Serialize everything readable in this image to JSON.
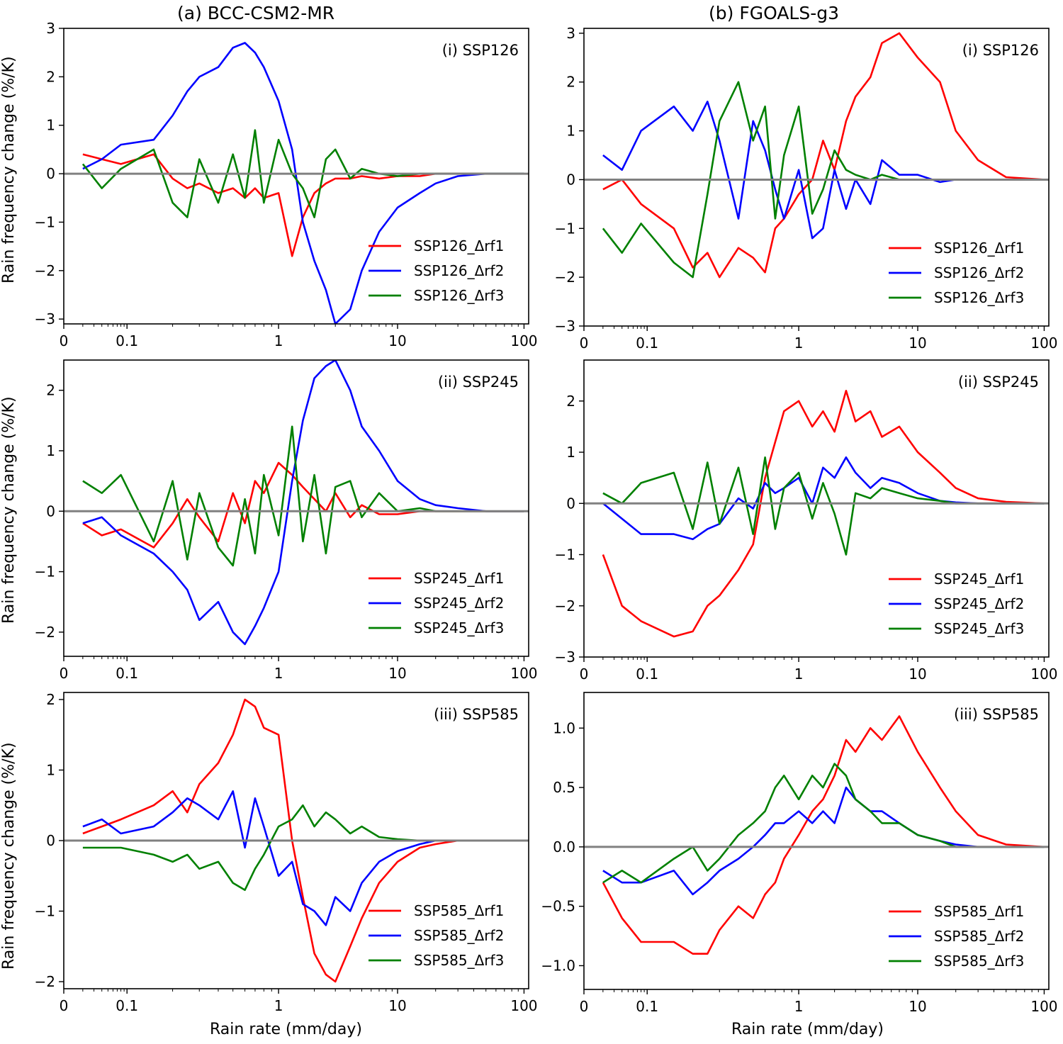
{
  "figure": {
    "col_titles": [
      "(a) BCC-CSM2-MR",
      "(b) FGOALS-g3"
    ],
    "ylabel": "Rain frequency change (%/K)",
    "xlabel": "Rain rate (mm/day)"
  },
  "colors": {
    "rf1": "#ff0000",
    "rf2": "#0000ff",
    "rf3": "#008000",
    "zero": "#808080"
  },
  "chart_data": [
    {
      "type": "line",
      "panel": "a-i",
      "title": "(i) SSP126",
      "xscale": "log-with-zero",
      "xlim": [
        0,
        100
      ],
      "ylim": [
        -3.1,
        3.0
      ],
      "xticks": [
        "0",
        "0.1",
        "1",
        "10",
        "100"
      ],
      "yticks": [
        -3,
        -2,
        -1,
        0,
        1,
        2,
        3
      ],
      "legend_loc": "lower right",
      "x": [
        0.02,
        0.04,
        0.08,
        0.15,
        0.2,
        0.25,
        0.3,
        0.4,
        0.5,
        0.6,
        0.7,
        0.8,
        1.0,
        1.3,
        1.6,
        2,
        2.5,
        3,
        4,
        5,
        7,
        10,
        15,
        20,
        30,
        50,
        100
      ],
      "series": [
        {
          "name": "SSP126_Δrf1",
          "key": "rf1",
          "values": [
            0.4,
            0.3,
            0.2,
            0.4,
            -0.1,
            -0.3,
            -0.2,
            -0.4,
            -0.3,
            -0.5,
            -0.3,
            -0.5,
            -0.4,
            -1.7,
            -0.9,
            -0.4,
            -0.2,
            -0.1,
            -0.1,
            -0.05,
            -0.1,
            -0.05,
            -0.05,
            0.0,
            0.0,
            0.0,
            0.0
          ]
        },
        {
          "name": "SSP126_Δrf2",
          "key": "rf2",
          "values": [
            0.1,
            0.3,
            0.6,
            0.7,
            1.2,
            1.7,
            2.0,
            2.2,
            2.6,
            2.7,
            2.5,
            2.2,
            1.5,
            0.5,
            -1.0,
            -1.8,
            -2.4,
            -3.1,
            -2.8,
            -2.0,
            -1.2,
            -0.7,
            -0.4,
            -0.2,
            -0.05,
            0.0,
            0.0
          ]
        },
        {
          "name": "SSP126_Δrf3",
          "key": "rf3",
          "values": [
            0.2,
            -0.3,
            0.1,
            0.5,
            -0.6,
            -0.9,
            0.3,
            -0.6,
            0.4,
            -0.5,
            0.9,
            -0.6,
            0.7,
            0.0,
            -0.3,
            -0.9,
            0.3,
            0.5,
            -0.1,
            0.1,
            0.0,
            -0.05,
            0.0,
            0.0,
            0.0,
            0.0,
            0.0
          ]
        }
      ]
    },
    {
      "type": "line",
      "panel": "a-ii",
      "title": "(ii) SSP245",
      "xscale": "log-with-zero",
      "xlim": [
        0,
        100
      ],
      "ylim": [
        -2.4,
        2.5
      ],
      "xticks": [
        "0",
        "0.1",
        "1",
        "10",
        "100"
      ],
      "yticks": [
        -2,
        -1,
        0,
        1,
        2
      ],
      "legend_loc": "lower right",
      "x": [
        0.02,
        0.04,
        0.08,
        0.15,
        0.2,
        0.25,
        0.3,
        0.4,
        0.5,
        0.6,
        0.7,
        0.8,
        1.0,
        1.3,
        1.6,
        2,
        2.5,
        3,
        4,
        5,
        7,
        10,
        15,
        20,
        30,
        50,
        100
      ],
      "series": [
        {
          "name": "SSP245_Δrf1",
          "key": "rf1",
          "values": [
            -0.2,
            -0.4,
            -0.3,
            -0.6,
            -0.2,
            0.2,
            -0.1,
            -0.5,
            0.3,
            -0.2,
            0.5,
            0.3,
            0.8,
            0.6,
            0.4,
            0.2,
            0.0,
            0.3,
            -0.1,
            0.1,
            -0.05,
            -0.05,
            0.0,
            0.0,
            0.0,
            0.0,
            0.0
          ]
        },
        {
          "name": "SSP245_Δrf2",
          "key": "rf2",
          "values": [
            -0.2,
            -0.1,
            -0.4,
            -0.7,
            -1.0,
            -1.3,
            -1.8,
            -1.5,
            -2.0,
            -2.2,
            -1.9,
            -1.6,
            -1.0,
            0.5,
            1.5,
            2.2,
            2.4,
            2.5,
            2.0,
            1.4,
            1.0,
            0.5,
            0.2,
            0.1,
            0.05,
            0.0,
            0.0
          ]
        },
        {
          "name": "SSP245_Δrf3",
          "key": "rf3",
          "values": [
            0.5,
            0.3,
            0.6,
            -0.5,
            0.5,
            -0.8,
            0.3,
            -0.6,
            -0.9,
            0.2,
            -0.7,
            0.6,
            -0.4,
            1.4,
            -0.5,
            0.6,
            -0.7,
            0.4,
            0.5,
            -0.1,
            0.3,
            0.0,
            0.05,
            0.0,
            0.0,
            0.0,
            0.0
          ]
        }
      ]
    },
    {
      "type": "line",
      "panel": "a-iii",
      "title": "(iii) SSP585",
      "xscale": "log-with-zero",
      "xlim": [
        0,
        100
      ],
      "ylim": [
        -2.1,
        2.1
      ],
      "xticks": [
        "0",
        "0.1",
        "1",
        "10",
        "100"
      ],
      "yticks": [
        -2,
        -1,
        0,
        1,
        2
      ],
      "legend_loc": "lower right",
      "x": [
        0.02,
        0.04,
        0.08,
        0.15,
        0.2,
        0.25,
        0.3,
        0.4,
        0.5,
        0.6,
        0.7,
        0.8,
        1.0,
        1.3,
        1.6,
        2,
        2.5,
        3,
        4,
        5,
        7,
        10,
        15,
        20,
        30,
        50,
        100
      ],
      "series": [
        {
          "name": "SSP585_Δrf1",
          "key": "rf1",
          "values": [
            0.1,
            0.2,
            0.3,
            0.5,
            0.7,
            0.4,
            0.8,
            1.1,
            1.5,
            2.0,
            1.9,
            1.6,
            1.5,
            0.0,
            -0.8,
            -1.6,
            -1.9,
            -2.0,
            -1.5,
            -1.1,
            -0.6,
            -0.3,
            -0.1,
            -0.05,
            0.0,
            0.0,
            0.0
          ]
        },
        {
          "name": "SSP585_Δrf2",
          "key": "rf2",
          "values": [
            0.2,
            0.3,
            0.1,
            0.2,
            0.4,
            0.6,
            0.5,
            0.3,
            0.7,
            -0.1,
            0.6,
            0.2,
            -0.5,
            -0.3,
            -0.9,
            -1.0,
            -1.2,
            -0.8,
            -1.0,
            -0.6,
            -0.3,
            -0.15,
            -0.05,
            0.0,
            0.0,
            0.0,
            0.0
          ]
        },
        {
          "name": "SSP585_Δrf3",
          "key": "rf3",
          "values": [
            -0.1,
            -0.1,
            -0.1,
            -0.2,
            -0.3,
            -0.2,
            -0.4,
            -0.3,
            -0.6,
            -0.7,
            -0.4,
            -0.2,
            0.2,
            0.3,
            0.5,
            0.2,
            0.4,
            0.3,
            0.1,
            0.2,
            0.05,
            0.02,
            0.0,
            0.0,
            0.0,
            0.0,
            0.0
          ]
        }
      ]
    },
    {
      "type": "line",
      "panel": "b-i",
      "title": "(i) SSP126",
      "xscale": "log-with-zero",
      "xlim": [
        0,
        100
      ],
      "ylim": [
        -3.0,
        3.1
      ],
      "xticks": [
        "0",
        "0.1",
        "1",
        "10",
        "100"
      ],
      "yticks": [
        -3,
        -2,
        -1,
        0,
        1,
        2,
        3
      ],
      "legend_loc": "lower right",
      "x": [
        0.02,
        0.04,
        0.08,
        0.15,
        0.2,
        0.25,
        0.3,
        0.4,
        0.5,
        0.6,
        0.7,
        0.8,
        1.0,
        1.3,
        1.6,
        2,
        2.5,
        3,
        4,
        5,
        7,
        10,
        15,
        20,
        30,
        50,
        100
      ],
      "series": [
        {
          "name": "SSP126_Δrf1",
          "key": "rf1",
          "values": [
            -0.2,
            0.0,
            -0.5,
            -1.0,
            -1.8,
            -1.5,
            -2.0,
            -1.4,
            -1.6,
            -1.9,
            -1.0,
            -0.8,
            -0.3,
            0.0,
            0.8,
            0.2,
            1.2,
            1.7,
            2.1,
            2.8,
            3.0,
            2.5,
            2.0,
            1.0,
            0.4,
            0.05,
            0.0
          ]
        },
        {
          "name": "SSP126_Δrf2",
          "key": "rf2",
          "values": [
            0.5,
            0.2,
            1.0,
            1.5,
            1.0,
            1.6,
            0.8,
            -0.8,
            1.2,
            0.6,
            -0.2,
            -0.8,
            0.2,
            -1.2,
            -1.0,
            0.2,
            -0.6,
            0.0,
            -0.5,
            0.4,
            0.1,
            0.1,
            -0.05,
            0.0,
            0.0,
            0.0,
            0.0
          ]
        },
        {
          "name": "SSP126_Δrf3",
          "key": "rf3",
          "values": [
            -1.0,
            -1.5,
            -0.9,
            -1.7,
            -2.0,
            -0.3,
            1.2,
            2.0,
            0.8,
            1.5,
            -0.8,
            0.5,
            1.5,
            -0.7,
            -0.2,
            0.6,
            0.2,
            0.1,
            0.0,
            0.1,
            0.0,
            0.0,
            0.0,
            0.0,
            0.0,
            0.0,
            0.0
          ]
        }
      ]
    },
    {
      "type": "line",
      "panel": "b-ii",
      "title": "(ii) SSP245",
      "xscale": "log-with-zero",
      "xlim": [
        0,
        100
      ],
      "ylim": [
        -3.0,
        2.8
      ],
      "xticks": [
        "0",
        "0.1",
        "1",
        "10",
        "100"
      ],
      "yticks": [
        -3,
        -2,
        -1,
        0,
        1,
        2
      ],
      "legend_loc": "lower right",
      "x": [
        0.02,
        0.04,
        0.08,
        0.15,
        0.2,
        0.25,
        0.3,
        0.4,
        0.5,
        0.6,
        0.7,
        0.8,
        1.0,
        1.3,
        1.6,
        2,
        2.5,
        3,
        4,
        5,
        7,
        10,
        15,
        20,
        30,
        50,
        100
      ],
      "series": [
        {
          "name": "SSP245_Δrf1",
          "key": "rf1",
          "values": [
            -1.0,
            -2.0,
            -2.3,
            -2.6,
            -2.5,
            -2.0,
            -1.8,
            -1.3,
            -0.8,
            0.5,
            1.2,
            1.8,
            2.0,
            1.5,
            1.8,
            1.4,
            2.2,
            1.6,
            1.8,
            1.3,
            1.5,
            1.0,
            0.6,
            0.3,
            0.1,
            0.03,
            0.0
          ]
        },
        {
          "name": "SSP245_Δrf2",
          "key": "rf2",
          "values": [
            0.0,
            -0.3,
            -0.6,
            -0.6,
            -0.7,
            -0.5,
            -0.4,
            0.1,
            -0.1,
            0.4,
            0.2,
            0.3,
            0.5,
            0.0,
            0.7,
            0.5,
            0.9,
            0.6,
            0.3,
            0.5,
            0.4,
            0.2,
            0.05,
            0.02,
            0.0,
            0.0,
            0.0
          ]
        },
        {
          "name": "SSP245_Δrf3",
          "key": "rf3",
          "values": [
            0.2,
            0.0,
            0.4,
            0.6,
            -0.5,
            0.8,
            -0.4,
            0.7,
            -0.6,
            0.9,
            -0.5,
            0.3,
            0.6,
            -0.3,
            0.4,
            -0.2,
            -1.0,
            0.2,
            0.1,
            0.3,
            0.2,
            0.1,
            0.05,
            0.0,
            0.0,
            0.0,
            0.0
          ]
        }
      ]
    },
    {
      "type": "line",
      "panel": "b-iii",
      "title": "(iii) SSP585",
      "xscale": "log-with-zero",
      "xlim": [
        0,
        100
      ],
      "ylim": [
        -1.2,
        1.3
      ],
      "xticks": [
        "0",
        "0.1",
        "1",
        "10",
        "100"
      ],
      "yticks": [
        -1.0,
        -0.5,
        0.0,
        0.5,
        1.0
      ],
      "legend_loc": "lower right",
      "x": [
        0.02,
        0.04,
        0.08,
        0.15,
        0.2,
        0.25,
        0.3,
        0.4,
        0.5,
        0.6,
        0.7,
        0.8,
        1.0,
        1.3,
        1.6,
        2,
        2.5,
        3,
        4,
        5,
        7,
        10,
        15,
        20,
        30,
        50,
        100
      ],
      "series": [
        {
          "name": "SSP585_Δrf1",
          "key": "rf1",
          "values": [
            -0.3,
            -0.6,
            -0.8,
            -0.8,
            -0.9,
            -0.9,
            -0.7,
            -0.5,
            -0.6,
            -0.4,
            -0.3,
            -0.1,
            0.1,
            0.3,
            0.4,
            0.6,
            0.9,
            0.8,
            1.0,
            0.9,
            1.1,
            0.8,
            0.5,
            0.3,
            0.1,
            0.02,
            0.0
          ]
        },
        {
          "name": "SSP585_Δrf2",
          "key": "rf2",
          "values": [
            -0.2,
            -0.3,
            -0.3,
            -0.2,
            -0.4,
            -0.3,
            -0.2,
            -0.1,
            0.0,
            0.1,
            0.2,
            0.2,
            0.3,
            0.2,
            0.3,
            0.2,
            0.5,
            0.4,
            0.3,
            0.3,
            0.2,
            0.1,
            0.05,
            0.02,
            0.0,
            0.0,
            0.0
          ]
        },
        {
          "name": "SSP585_Δrf3",
          "key": "rf3",
          "values": [
            -0.3,
            -0.2,
            -0.3,
            -0.1,
            0.0,
            -0.2,
            -0.1,
            0.1,
            0.2,
            0.3,
            0.5,
            0.6,
            0.4,
            0.6,
            0.5,
            0.7,
            0.6,
            0.4,
            0.3,
            0.2,
            0.2,
            0.1,
            0.05,
            0.0,
            0.0,
            0.0,
            0.0
          ]
        }
      ]
    }
  ]
}
